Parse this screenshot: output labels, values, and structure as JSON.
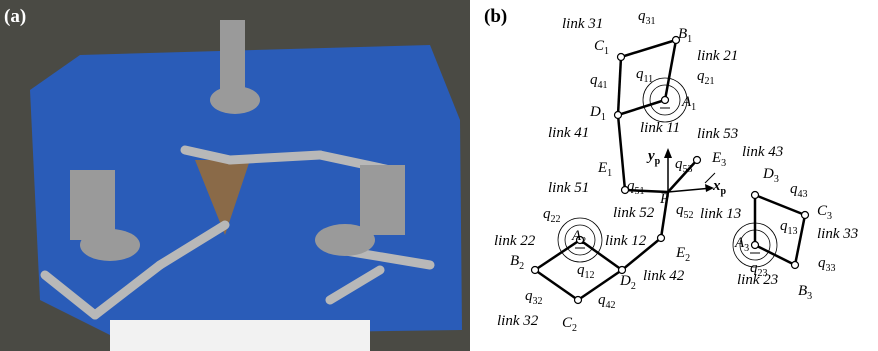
{
  "panels": {
    "a": "(a)",
    "b": "(b)"
  },
  "diagram": {
    "labels": [
      {
        "text": "link 31"
      },
      {
        "text": "C",
        "sub": "1"
      },
      {
        "text": "q",
        "sub": "31"
      },
      {
        "text": "B",
        "sub": "1"
      },
      {
        "text": "link 21"
      },
      {
        "text": "q",
        "sub": "41"
      },
      {
        "text": "q",
        "sub": "11"
      },
      {
        "text": "q",
        "sub": "21"
      },
      {
        "text": "A",
        "sub": "1"
      },
      {
        "text": "D",
        "sub": "1"
      },
      {
        "text": "link 11"
      },
      {
        "text": "link 41"
      },
      {
        "text": "link 53"
      },
      {
        "text": "y",
        "sub": "p"
      },
      {
        "text": "q",
        "sub": "53"
      },
      {
        "text": "E",
        "sub": "3"
      },
      {
        "text": "link 43"
      },
      {
        "text": "E",
        "sub": "1"
      },
      {
        "text": "D",
        "sub": "3"
      },
      {
        "text": "q",
        "sub": "43"
      },
      {
        "text": "link 51"
      },
      {
        "text": "q",
        "sub": "51"
      },
      {
        "text": "x",
        "sub": "p"
      },
      {
        "text": "P"
      },
      {
        "text": "C",
        "sub": "3"
      },
      {
        "text": "q",
        "sub": "22"
      },
      {
        "text": "link 52"
      },
      {
        "text": "q",
        "sub": "52"
      },
      {
        "text": "link 13"
      },
      {
        "text": "q",
        "sub": "13"
      },
      {
        "text": "link 22"
      },
      {
        "text": "A",
        "sub": "2"
      },
      {
        "text": "link 12"
      },
      {
        "text": "A",
        "sub": "3"
      },
      {
        "text": "link 33"
      },
      {
        "text": "B",
        "sub": "2"
      },
      {
        "text": "q",
        "sub": "12"
      },
      {
        "text": "E",
        "sub": "2"
      },
      {
        "text": "q",
        "sub": "23"
      },
      {
        "text": "link 42"
      },
      {
        "text": "D",
        "sub": "2"
      },
      {
        "text": "link 23"
      },
      {
        "text": "q",
        "sub": "33"
      },
      {
        "text": "q",
        "sub": "32"
      },
      {
        "text": "B",
        "sub": "3"
      },
      {
        "text": "q",
        "sub": "42"
      },
      {
        "text": "link 32"
      },
      {
        "text": "C",
        "sub": "2"
      }
    ]
  }
}
